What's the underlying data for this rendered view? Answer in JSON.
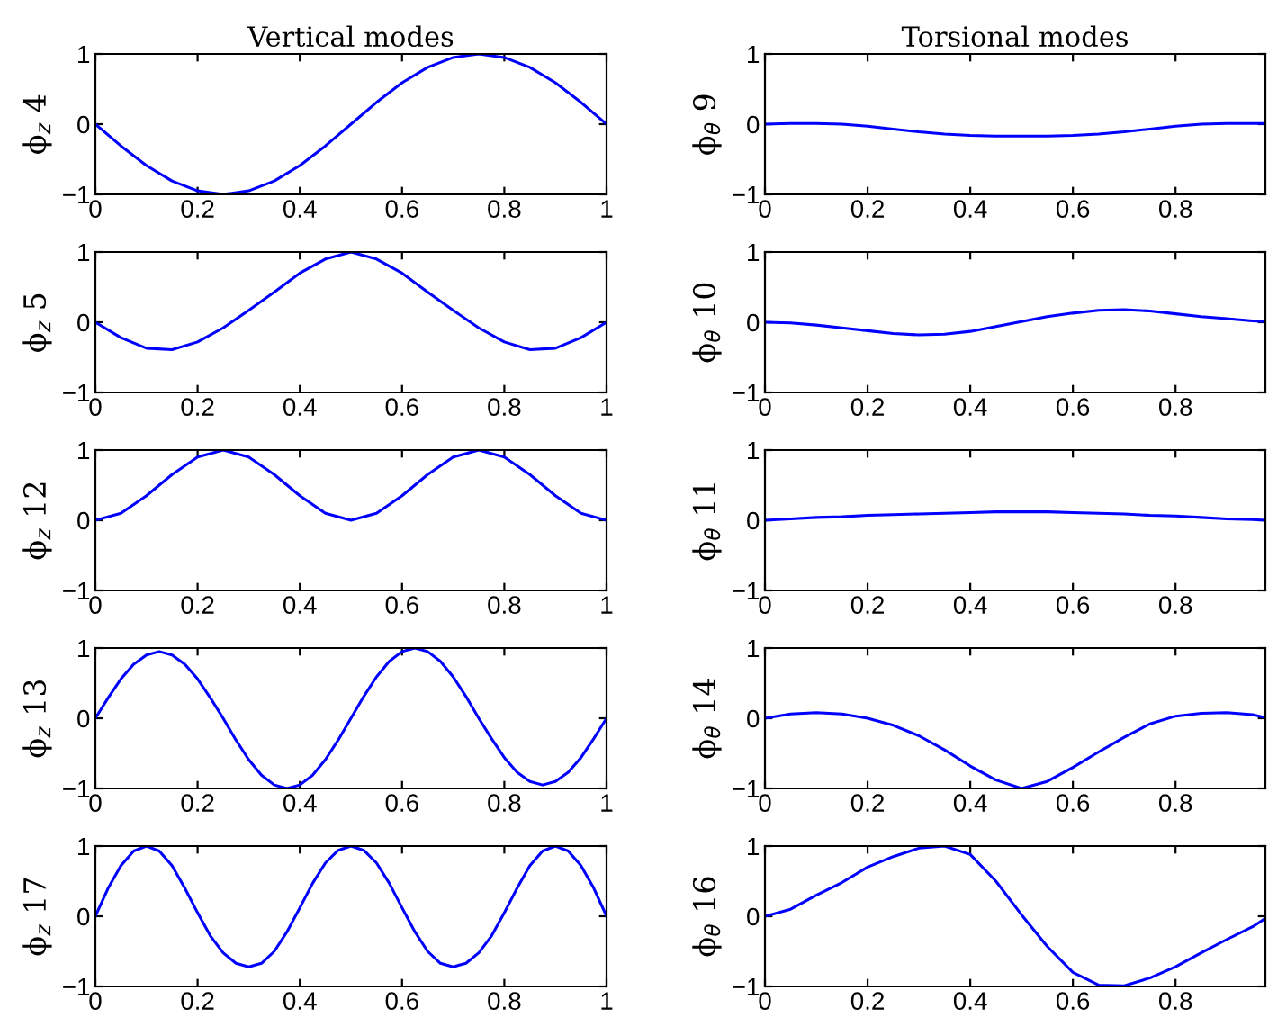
{
  "chart_data": [
    {
      "type": "line",
      "title": "Vertical modes",
      "ylabel": "ϕ$_{z}$ 4",
      "xlim": [
        0,
        1
      ],
      "ylim": [
        -1,
        1
      ],
      "xticks": [
        0,
        0.2,
        0.4,
        0.6,
        0.8,
        1
      ],
      "yticks": [
        -1,
        0,
        1
      ],
      "grid": false,
      "series": [
        {
          "color": "#0000ff",
          "x": [
            0,
            0.05,
            0.1,
            0.15,
            0.2,
            0.25,
            0.3,
            0.35,
            0.4,
            0.45,
            0.5,
            0.55,
            0.6,
            0.65,
            0.7,
            0.75,
            0.8,
            0.85,
            0.9,
            0.95,
            1
          ],
          "values": [
            0,
            -0.31,
            -0.59,
            -0.81,
            -0.95,
            -1,
            -0.95,
            -0.81,
            -0.59,
            -0.31,
            0,
            0.31,
            0.59,
            0.81,
            0.95,
            1,
            0.95,
            0.81,
            0.59,
            0.31,
            0
          ]
        }
      ]
    },
    {
      "type": "line",
      "title": "Torsional modes",
      "ylabel": "ϕ$_{θ}$ 9",
      "xlim": [
        0,
        0.975
      ],
      "ylim": [
        -1,
        1
      ],
      "xticks": [
        0,
        0.2,
        0.4,
        0.6,
        0.8
      ],
      "yticks": [
        -1,
        0,
        1
      ],
      "grid": false,
      "series": [
        {
          "color": "#0000ff",
          "x": [
            0,
            0.05,
            0.1,
            0.15,
            0.2,
            0.25,
            0.3,
            0.35,
            0.4,
            0.45,
            0.5,
            0.55,
            0.6,
            0.65,
            0.7,
            0.75,
            0.8,
            0.85,
            0.9,
            0.95,
            0.975
          ],
          "values": [
            0,
            0.01,
            0.01,
            0,
            -0.03,
            -0.07,
            -0.11,
            -0.14,
            -0.16,
            -0.17,
            -0.17,
            -0.17,
            -0.16,
            -0.14,
            -0.11,
            -0.07,
            -0.03,
            0,
            0.01,
            0.01,
            0.01
          ]
        }
      ]
    },
    {
      "type": "line",
      "ylabel": "ϕ$_{z}$ 5",
      "xlim": [
        0,
        1
      ],
      "ylim": [
        -1,
        1
      ],
      "xticks": [
        0,
        0.2,
        0.4,
        0.6,
        0.8,
        1
      ],
      "yticks": [
        -1,
        0,
        1
      ],
      "grid": false,
      "series": [
        {
          "color": "#0000ff",
          "x": [
            0,
            0.05,
            0.1,
            0.15,
            0.2,
            0.25,
            0.3,
            0.35,
            0.4,
            0.45,
            0.5,
            0.55,
            0.6,
            0.65,
            0.7,
            0.75,
            0.8,
            0.85,
            0.9,
            0.95,
            1
          ],
          "values": [
            0,
            -0.22,
            -0.37,
            -0.39,
            -0.28,
            -0.08,
            0.17,
            0.43,
            0.7,
            0.9,
            1,
            0.9,
            0.7,
            0.43,
            0.17,
            -0.08,
            -0.28,
            -0.39,
            -0.37,
            -0.22,
            0
          ]
        }
      ]
    },
    {
      "type": "line",
      "ylabel": "ϕ$_{θ}$ 10",
      "xlim": [
        0,
        0.975
      ],
      "ylim": [
        -1,
        1
      ],
      "xticks": [
        0,
        0.2,
        0.4,
        0.6,
        0.8
      ],
      "yticks": [
        -1,
        0,
        1
      ],
      "grid": false,
      "series": [
        {
          "color": "#0000ff",
          "x": [
            0,
            0.05,
            0.1,
            0.15,
            0.2,
            0.25,
            0.3,
            0.35,
            0.4,
            0.45,
            0.5,
            0.55,
            0.6,
            0.65,
            0.7,
            0.75,
            0.8,
            0.85,
            0.9,
            0.95,
            0.975
          ],
          "values": [
            0,
            -0.01,
            -0.04,
            -0.08,
            -0.12,
            -0.16,
            -0.18,
            -0.17,
            -0.13,
            -0.06,
            0.01,
            0.08,
            0.13,
            0.17,
            0.18,
            0.16,
            0.12,
            0.08,
            0.05,
            0.02,
            0.01
          ]
        }
      ]
    },
    {
      "type": "line",
      "ylabel": "ϕ$_{z}$ 12",
      "xlim": [
        0,
        1
      ],
      "ylim": [
        -1,
        1
      ],
      "xticks": [
        0,
        0.2,
        0.4,
        0.6,
        0.8,
        1
      ],
      "yticks": [
        -1,
        0,
        1
      ],
      "grid": false,
      "series": [
        {
          "color": "#0000ff",
          "x": [
            0,
            0.05,
            0.1,
            0.15,
            0.2,
            0.25,
            0.3,
            0.35,
            0.4,
            0.45,
            0.5,
            0.55,
            0.6,
            0.65,
            0.7,
            0.75,
            0.8,
            0.85,
            0.9,
            0.95,
            1
          ],
          "values": [
            0,
            0.1,
            0.35,
            0.65,
            0.9,
            1,
            0.9,
            0.65,
            0.35,
            0.1,
            0,
            0.1,
            0.35,
            0.65,
            0.9,
            1,
            0.9,
            0.65,
            0.35,
            0.1,
            0
          ]
        }
      ]
    },
    {
      "type": "line",
      "ylabel": "ϕ$_{θ}$ 11",
      "xlim": [
        0,
        0.975
      ],
      "ylim": [
        -1,
        1
      ],
      "xticks": [
        0,
        0.2,
        0.4,
        0.6,
        0.8
      ],
      "yticks": [
        -1,
        0,
        1
      ],
      "grid": false,
      "series": [
        {
          "color": "#0000ff",
          "x": [
            0,
            0.05,
            0.1,
            0.15,
            0.2,
            0.25,
            0.3,
            0.35,
            0.4,
            0.45,
            0.5,
            0.55,
            0.6,
            0.65,
            0.7,
            0.75,
            0.8,
            0.85,
            0.9,
            0.95,
            0.975
          ],
          "values": [
            0,
            0.02,
            0.04,
            0.05,
            0.07,
            0.08,
            0.09,
            0.1,
            0.11,
            0.12,
            0.12,
            0.12,
            0.11,
            0.1,
            0.09,
            0.07,
            0.06,
            0.04,
            0.02,
            0.01,
            0
          ]
        }
      ]
    },
    {
      "type": "line",
      "ylabel": "ϕ$_{z}$ 13",
      "xlim": [
        0,
        1
      ],
      "ylim": [
        -1,
        1
      ],
      "xticks": [
        0,
        0.2,
        0.4,
        0.6,
        0.8,
        1
      ],
      "yticks": [
        -1,
        0,
        1
      ],
      "grid": false,
      "series": [
        {
          "color": "#0000ff",
          "x": [
            0,
            0.025,
            0.05,
            0.075,
            0.1,
            0.125,
            0.15,
            0.175,
            0.2,
            0.225,
            0.25,
            0.275,
            0.3,
            0.325,
            0.35,
            0.375,
            0.4,
            0.425,
            0.45,
            0.475,
            0.5,
            0.525,
            0.55,
            0.575,
            0.6,
            0.625,
            0.65,
            0.675,
            0.7,
            0.725,
            0.75,
            0.775,
            0.8,
            0.825,
            0.85,
            0.875,
            0.9,
            0.925,
            0.95,
            0.975,
            1
          ],
          "values": [
            0,
            0.29,
            0.56,
            0.77,
            0.9,
            0.95,
            0.9,
            0.77,
            0.56,
            0.29,
            0,
            -0.31,
            -0.59,
            -0.81,
            -0.95,
            -1,
            -0.95,
            -0.81,
            -0.59,
            -0.31,
            0,
            0.31,
            0.59,
            0.81,
            0.95,
            1,
            0.95,
            0.81,
            0.59,
            0.31,
            0,
            -0.29,
            -0.56,
            -0.77,
            -0.9,
            -0.95,
            -0.9,
            -0.77,
            -0.56,
            -0.29,
            0
          ]
        }
      ]
    },
    {
      "type": "line",
      "ylabel": "ϕ$_{θ}$ 14",
      "xlim": [
        0,
        0.975
      ],
      "ylim": [
        -1,
        1
      ],
      "xticks": [
        0,
        0.2,
        0.4,
        0.6,
        0.8
      ],
      "yticks": [
        -1,
        0,
        1
      ],
      "grid": false,
      "series": [
        {
          "color": "#0000ff",
          "x": [
            0,
            0.05,
            0.1,
            0.15,
            0.2,
            0.25,
            0.3,
            0.35,
            0.4,
            0.45,
            0.5,
            0.55,
            0.6,
            0.65,
            0.7,
            0.75,
            0.8,
            0.85,
            0.9,
            0.95,
            0.975
          ],
          "values": [
            0,
            0.06,
            0.08,
            0.06,
            0,
            -0.1,
            -0.25,
            -0.45,
            -0.68,
            -0.88,
            -1,
            -0.9,
            -0.7,
            -0.48,
            -0.27,
            -0.08,
            0.03,
            0.07,
            0.08,
            0.05,
            0.01
          ]
        }
      ]
    },
    {
      "type": "line",
      "ylabel": "ϕ$_{z}$ 17",
      "xlim": [
        0,
        1
      ],
      "ylim": [
        -1,
        1
      ],
      "xticks": [
        0,
        0.2,
        0.4,
        0.6,
        0.8,
        1
      ],
      "yticks": [
        -1,
        0,
        1
      ],
      "grid": false,
      "series": [
        {
          "color": "#0000ff",
          "x": [
            0,
            0.025,
            0.05,
            0.075,
            0.1,
            0.125,
            0.15,
            0.175,
            0.2,
            0.225,
            0.25,
            0.275,
            0.3,
            0.325,
            0.35,
            0.375,
            0.4,
            0.425,
            0.45,
            0.475,
            0.5,
            0.525,
            0.55,
            0.575,
            0.6,
            0.625,
            0.65,
            0.675,
            0.7,
            0.725,
            0.75,
            0.775,
            0.8,
            0.825,
            0.85,
            0.875,
            0.9,
            0.925,
            0.95,
            0.975,
            1
          ],
          "values": [
            0,
            0.4,
            0.72,
            0.93,
            1,
            0.93,
            0.72,
            0.4,
            0.05,
            -0.28,
            -0.52,
            -0.67,
            -0.72,
            -0.67,
            -0.5,
            -0.22,
            0.12,
            0.47,
            0.76,
            0.94,
            1,
            0.94,
            0.76,
            0.47,
            0.12,
            -0.22,
            -0.5,
            -0.67,
            -0.72,
            -0.67,
            -0.52,
            -0.28,
            0.05,
            0.4,
            0.72,
            0.93,
            1,
            0.93,
            0.72,
            0.4,
            0
          ]
        }
      ]
    },
    {
      "type": "line",
      "ylabel": "ϕ$_{θ}$ 16",
      "xlim": [
        0,
        0.975
      ],
      "ylim": [
        -1,
        1
      ],
      "xticks": [
        0,
        0.2,
        0.4,
        0.6,
        0.8
      ],
      "yticks": [
        -1,
        0,
        1
      ],
      "grid": false,
      "series": [
        {
          "color": "#0000ff",
          "x": [
            0,
            0.05,
            0.1,
            0.15,
            0.2,
            0.25,
            0.3,
            0.35,
            0.4,
            0.45,
            0.5,
            0.55,
            0.6,
            0.65,
            0.7,
            0.75,
            0.8,
            0.85,
            0.9,
            0.95,
            0.975
          ],
          "values": [
            0,
            0.1,
            0.3,
            0.48,
            0.7,
            0.85,
            0.97,
            1,
            0.88,
            0.5,
            0.02,
            -0.43,
            -0.8,
            -0.98,
            -0.99,
            -0.88,
            -0.72,
            -0.52,
            -0.33,
            -0.15,
            -0.03
          ]
        }
      ]
    }
  ]
}
